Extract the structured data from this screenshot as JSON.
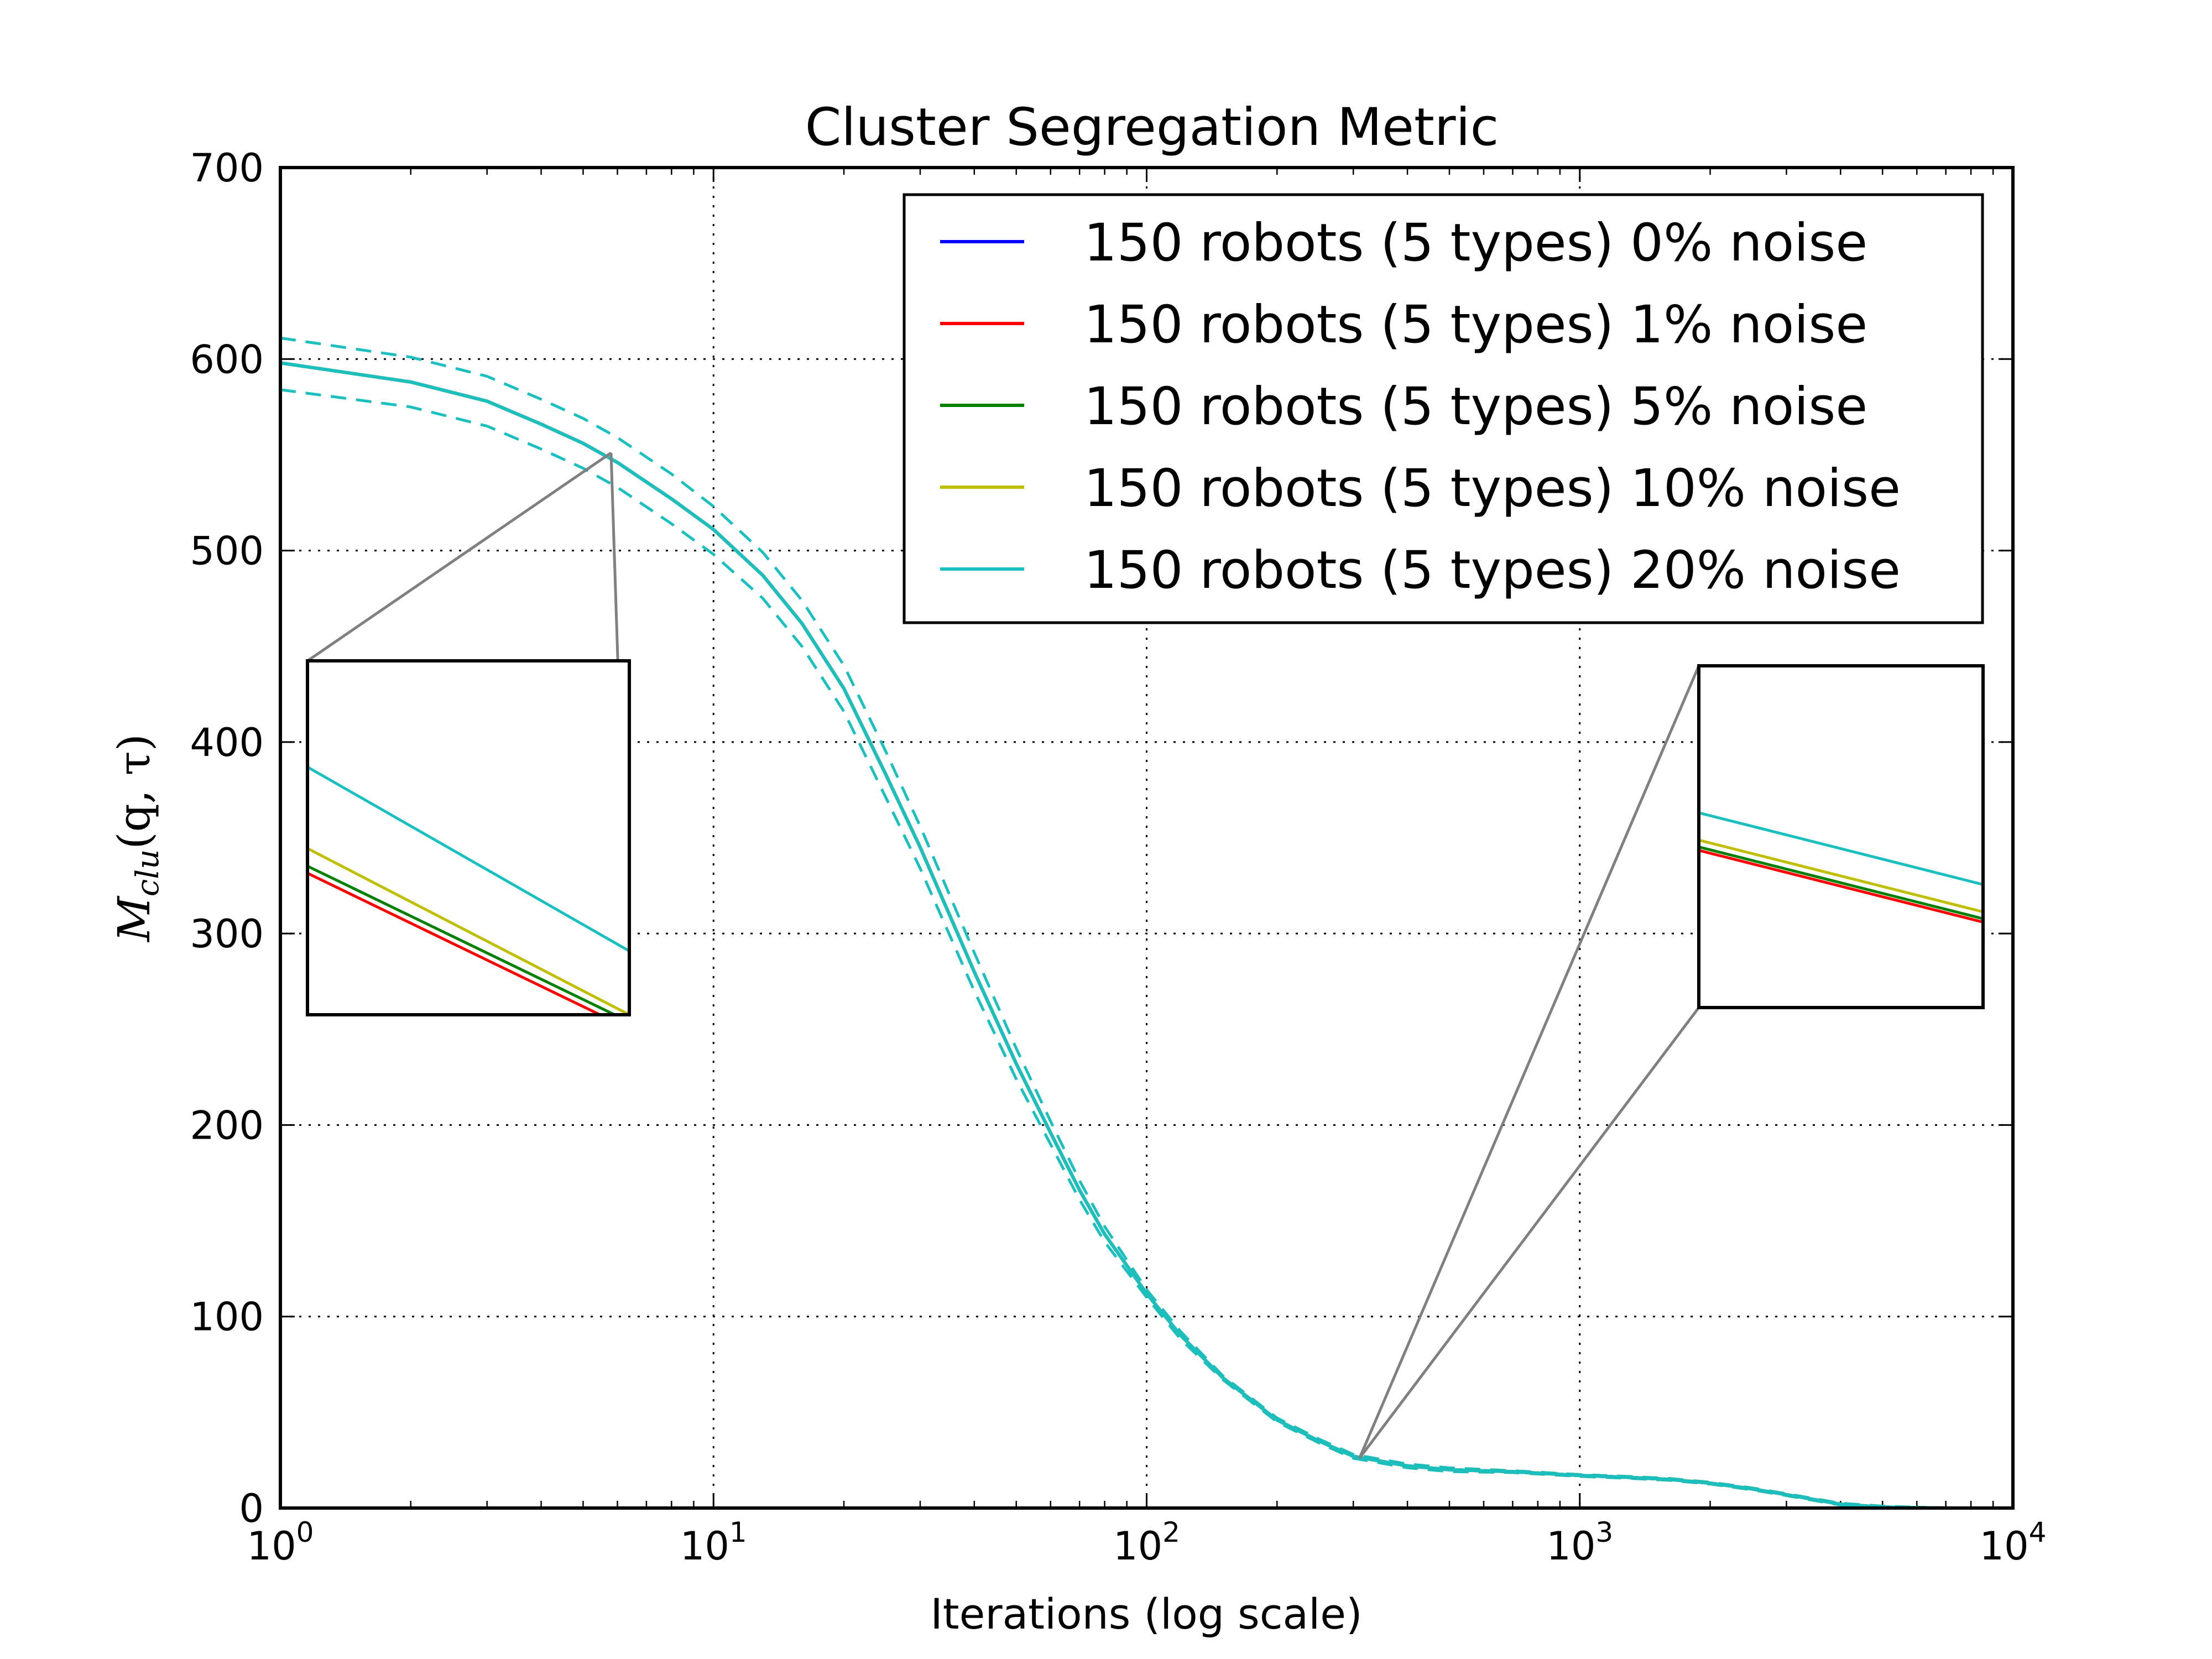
{
  "chart_data": {
    "type": "line",
    "title": "Cluster Segregation Metric",
    "xlabel": "Iterations (log scale)",
    "ylabel": "M_clu(q, τ)",
    "ylabel_parts": {
      "symbol": "M",
      "subscript": "clu",
      "args": "(q, τ)"
    },
    "x_scale": "log",
    "xlim": [
      1,
      10000
    ],
    "ylim": [
      0,
      700
    ],
    "grid": true,
    "legend_position": "top-right",
    "x_ticks": [
      {
        "value": 1,
        "base": "10",
        "exp": "0"
      },
      {
        "value": 10,
        "base": "10",
        "exp": "1"
      },
      {
        "value": 100,
        "base": "10",
        "exp": "2"
      },
      {
        "value": 1000,
        "base": "10",
        "exp": "3"
      },
      {
        "value": 10000,
        "base": "10",
        "exp": "4"
      }
    ],
    "y_ticks": [
      "0",
      "100",
      "200",
      "300",
      "400",
      "500",
      "600",
      "700"
    ],
    "x": [
      1,
      2,
      3,
      4,
      5,
      6,
      8,
      10,
      13,
      16,
      20,
      25,
      30,
      40,
      50,
      60,
      70,
      80,
      100,
      120,
      150,
      200,
      250,
      300,
      400,
      500,
      700,
      1000,
      1300,
      1600,
      2000,
      2500,
      3000,
      4000,
      5000,
      7000,
      8500
    ],
    "series": [
      {
        "name": "150 robots (5 types) 0% noise",
        "color": "#0000ff",
        "values": [
          598,
          588,
          578,
          566,
          556,
          546,
          527,
          511,
          487,
          462,
          428,
          383,
          345,
          280,
          232,
          196,
          166,
          143,
          112,
          90,
          68,
          46,
          35,
          27,
          22,
          20,
          19,
          17,
          16,
          15,
          13,
          10,
          7,
          2,
          0.5,
          0,
          0
        ]
      },
      {
        "name": "150 robots (5 types) 1% noise",
        "color": "#ff0000",
        "values": [
          598,
          588,
          578,
          566,
          556,
          546,
          527,
          511,
          487,
          462,
          428,
          383,
          345,
          280,
          232,
          196,
          166,
          143,
          112,
          90,
          68,
          46,
          35,
          27,
          22,
          20,
          19,
          17,
          16,
          15,
          13,
          10,
          7,
          2,
          0.5,
          0,
          0
        ]
      },
      {
        "name": "150 robots (5 types) 5% noise",
        "color": "#008000",
        "values": [
          598,
          588,
          578,
          566,
          556,
          546,
          527,
          511,
          487,
          462,
          428,
          383,
          345,
          280,
          232,
          196,
          166,
          143,
          112,
          90,
          68,
          46,
          35,
          27,
          22,
          20,
          19,
          17,
          16,
          15,
          13,
          10,
          7,
          2,
          0.5,
          0,
          0
        ]
      },
      {
        "name": "150 robots (5 types) 10% noise",
        "color": "#bfbf00",
        "values": [
          598,
          588,
          578,
          566,
          556,
          546,
          527,
          511,
          487,
          462,
          428,
          383,
          345,
          280,
          232,
          196,
          166,
          143,
          112,
          90,
          68,
          46,
          35,
          27,
          22,
          20,
          19,
          17,
          16,
          15,
          13,
          10,
          7,
          2,
          0.5,
          0,
          0
        ]
      },
      {
        "name": "150 robots (5 types) 20% noise",
        "color": "#1ac0c0",
        "values": [
          598,
          588,
          578,
          566,
          556,
          546,
          527,
          511,
          487,
          462,
          428,
          383,
          345,
          280,
          232,
          196,
          166,
          143,
          112,
          90,
          68,
          46,
          35,
          27,
          22,
          20,
          19,
          17,
          16,
          15,
          13,
          10,
          7,
          2,
          0.5,
          0,
          0
        ],
        "upper": [
          611,
          601,
          591,
          579,
          569,
          559,
          540,
          523,
          499,
          474,
          440,
          395,
          356,
          290,
          240,
          202,
          171,
          147,
          114,
          92,
          69,
          47,
          36,
          28,
          23,
          21,
          19.5,
          17.5,
          16.5,
          15.5,
          13.5,
          10.5,
          7.5,
          2.5,
          1,
          0,
          0
        ],
        "lower": [
          584,
          575,
          565,
          553,
          543,
          533,
          514,
          498,
          475,
          450,
          416,
          371,
          334,
          270,
          224,
          190,
          161,
          139,
          110,
          88,
          67,
          45,
          34,
          26,
          21,
          19,
          18.5,
          16.5,
          15.5,
          14.5,
          12.5,
          9.5,
          6.5,
          1.5,
          0,
          0,
          0
        ]
      }
    ],
    "insets": [
      {
        "zoom_point": [
          5.8,
          551
        ],
        "lines": [
          {
            "color": "#1ac0c0",
            "left": 0.7,
            "right": 0.18
          },
          {
            "color": "#bfbf00",
            "left": 0.47,
            "right": 0.0
          },
          {
            "color": "#008000",
            "left": 0.42,
            "right": -0.02
          },
          {
            "color": "#ff0000",
            "left": 0.4,
            "right": -0.04
          }
        ]
      },
      {
        "zoom_point": [
          310,
          26
        ],
        "lines": [
          {
            "color": "#1ac0c0",
            "left": 0.57,
            "right": 0.36
          },
          {
            "color": "#bfbf00",
            "left": 0.49,
            "right": 0.28
          },
          {
            "color": "#008000",
            "left": 0.47,
            "right": 0.26
          },
          {
            "color": "#ff0000",
            "left": 0.46,
            "right": 0.25
          }
        ]
      }
    ]
  }
}
